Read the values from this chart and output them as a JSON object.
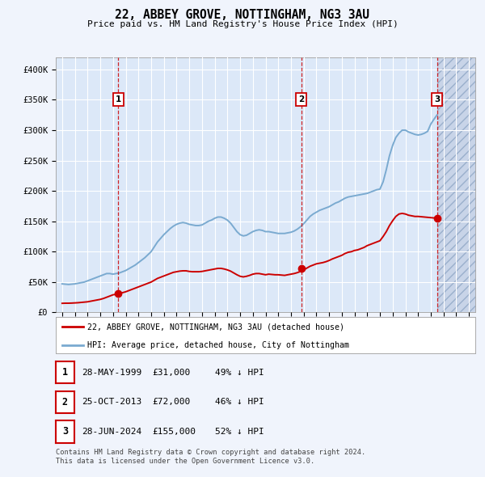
{
  "title": "22, ABBEY GROVE, NOTTINGHAM, NG3 3AU",
  "subtitle": "Price paid vs. HM Land Registry's House Price Index (HPI)",
  "background_color": "#f0f4fc",
  "plot_bg_color": "#dce8f8",
  "grid_color": "#ffffff",
  "red_line_color": "#cc0000",
  "blue_line_color": "#7aaad0",
  "sale_marker_color": "#cc0000",
  "sale_line_color": "#cc0000",
  "annotation_border_color": "#cc0000",
  "ylim": [
    0,
    420000
  ],
  "yticks": [
    0,
    50000,
    100000,
    150000,
    200000,
    250000,
    300000,
    350000,
    400000
  ],
  "ytick_labels": [
    "£0",
    "£50K",
    "£100K",
    "£150K",
    "£200K",
    "£250K",
    "£300K",
    "£350K",
    "£400K"
  ],
  "xlim_start": 1994.5,
  "xlim_end": 2027.5,
  "future_shade_start": 2024.5,
  "xticks": [
    1995,
    1996,
    1997,
    1998,
    1999,
    2000,
    2001,
    2002,
    2003,
    2004,
    2005,
    2006,
    2007,
    2008,
    2009,
    2010,
    2011,
    2012,
    2013,
    2014,
    2015,
    2016,
    2017,
    2018,
    2019,
    2020,
    2021,
    2022,
    2023,
    2024,
    2025,
    2026,
    2027
  ],
  "sale_points": [
    {
      "year": 1999.4,
      "price": 31000,
      "label": "1"
    },
    {
      "year": 2013.82,
      "price": 72000,
      "label": "2"
    },
    {
      "year": 2024.49,
      "price": 155000,
      "label": "3"
    }
  ],
  "legend_entries": [
    {
      "label": "22, ABBEY GROVE, NOTTINGHAM, NG3 3AU (detached house)",
      "color": "#cc0000"
    },
    {
      "label": "HPI: Average price, detached house, City of Nottingham",
      "color": "#7aaad0"
    }
  ],
  "table_rows": [
    {
      "num": "1",
      "date": "28-MAY-1999",
      "price": "£31,000",
      "hpi": "49% ↓ HPI"
    },
    {
      "num": "2",
      "date": "25-OCT-2013",
      "price": "£72,000",
      "hpi": "46% ↓ HPI"
    },
    {
      "num": "3",
      "date": "28-JUN-2024",
      "price": "£155,000",
      "hpi": "52% ↓ HPI"
    }
  ],
  "footer": "Contains HM Land Registry data © Crown copyright and database right 2024.\nThis data is licensed under the Open Government Licence v3.0.",
  "hpi_data": {
    "years": [
      1995.0,
      1995.25,
      1995.5,
      1995.75,
      1996.0,
      1996.25,
      1996.5,
      1996.75,
      1997.0,
      1997.25,
      1997.5,
      1997.75,
      1998.0,
      1998.25,
      1998.5,
      1998.75,
      1999.0,
      1999.25,
      1999.5,
      1999.75,
      2000.0,
      2000.25,
      2000.5,
      2000.75,
      2001.0,
      2001.25,
      2001.5,
      2001.75,
      2002.0,
      2002.25,
      2002.5,
      2002.75,
      2003.0,
      2003.25,
      2003.5,
      2003.75,
      2004.0,
      2004.25,
      2004.5,
      2004.75,
      2005.0,
      2005.25,
      2005.5,
      2005.75,
      2006.0,
      2006.25,
      2006.5,
      2006.75,
      2007.0,
      2007.25,
      2007.5,
      2007.75,
      2008.0,
      2008.25,
      2008.5,
      2008.75,
      2009.0,
      2009.25,
      2009.5,
      2009.75,
      2010.0,
      2010.25,
      2010.5,
      2010.75,
      2011.0,
      2011.25,
      2011.5,
      2011.75,
      2012.0,
      2012.25,
      2012.5,
      2012.75,
      2013.0,
      2013.25,
      2013.5,
      2013.75,
      2014.0,
      2014.25,
      2014.5,
      2014.75,
      2015.0,
      2015.25,
      2015.5,
      2015.75,
      2016.0,
      2016.25,
      2016.5,
      2016.75,
      2017.0,
      2017.25,
      2017.5,
      2017.75,
      2018.0,
      2018.25,
      2018.5,
      2018.75,
      2019.0,
      2019.25,
      2019.5,
      2019.75,
      2020.0,
      2020.25,
      2020.5,
      2020.75,
      2021.0,
      2021.25,
      2021.5,
      2021.75,
      2022.0,
      2022.25,
      2022.5,
      2022.75,
      2023.0,
      2023.25,
      2023.5,
      2023.75,
      2024.0,
      2024.25,
      2024.49
    ],
    "values": [
      47000,
      46500,
      46000,
      46500,
      47000,
      48000,
      49000,
      50000,
      52000,
      54000,
      56000,
      58000,
      60000,
      62000,
      64000,
      64000,
      63000,
      64000,
      65000,
      67000,
      69000,
      72000,
      75000,
      78000,
      82000,
      86000,
      90000,
      95000,
      100000,
      108000,
      116000,
      122000,
      128000,
      133000,
      138000,
      142000,
      145000,
      147000,
      148000,
      147000,
      145000,
      144000,
      143000,
      143000,
      144000,
      147000,
      150000,
      152000,
      155000,
      157000,
      157000,
      155000,
      152000,
      147000,
      140000,
      133000,
      128000,
      126000,
      127000,
      130000,
      133000,
      135000,
      136000,
      135000,
      133000,
      133000,
      132000,
      131000,
      130000,
      130000,
      130000,
      131000,
      132000,
      134000,
      137000,
      141000,
      146000,
      152000,
      158000,
      162000,
      165000,
      168000,
      170000,
      172000,
      174000,
      177000,
      180000,
      182000,
      185000,
      188000,
      190000,
      191000,
      192000,
      193000,
      194000,
      195000,
      196000,
      198000,
      200000,
      202000,
      203000,
      215000,
      235000,
      258000,
      275000,
      288000,
      295000,
      300000,
      300000,
      297000,
      295000,
      293000,
      292000,
      293000,
      295000,
      298000,
      310000,
      318000,
      325000
    ]
  },
  "red_data": {
    "years": [
      1995.0,
      1995.25,
      1995.5,
      1995.75,
      1996.0,
      1996.25,
      1996.5,
      1996.75,
      1997.0,
      1997.25,
      1997.5,
      1997.75,
      1998.0,
      1998.25,
      1998.5,
      1998.75,
      1999.0,
      1999.25,
      1999.5,
      1999.75,
      2000.0,
      2000.25,
      2000.5,
      2000.75,
      2001.0,
      2001.25,
      2001.5,
      2001.75,
      2002.0,
      2002.25,
      2002.5,
      2002.75,
      2003.0,
      2003.25,
      2003.5,
      2003.75,
      2004.0,
      2004.25,
      2004.5,
      2004.75,
      2005.0,
      2005.25,
      2005.5,
      2005.75,
      2006.0,
      2006.25,
      2006.5,
      2006.75,
      2007.0,
      2007.25,
      2007.5,
      2007.75,
      2008.0,
      2008.25,
      2008.5,
      2008.75,
      2009.0,
      2009.25,
      2009.5,
      2009.75,
      2010.0,
      2010.25,
      2010.5,
      2010.75,
      2011.0,
      2011.25,
      2011.5,
      2011.75,
      2012.0,
      2012.25,
      2012.5,
      2012.75,
      2013.0,
      2013.25,
      2013.5,
      2013.75,
      2014.0,
      2014.25,
      2014.5,
      2014.75,
      2015.0,
      2015.25,
      2015.5,
      2015.75,
      2016.0,
      2016.25,
      2016.5,
      2016.75,
      2017.0,
      2017.25,
      2017.5,
      2017.75,
      2018.0,
      2018.25,
      2018.5,
      2018.75,
      2019.0,
      2019.25,
      2019.5,
      2019.75,
      2020.0,
      2020.25,
      2020.5,
      2020.75,
      2021.0,
      2021.25,
      2021.5,
      2021.75,
      2022.0,
      2022.25,
      2022.5,
      2022.75,
      2023.0,
      2023.25,
      2023.5,
      2023.75,
      2024.0,
      2024.25,
      2024.49
    ],
    "values": [
      15000,
      15200,
      15200,
      15400,
      15700,
      16000,
      16500,
      17000,
      17500,
      18500,
      19500,
      20500,
      21500,
      23000,
      25000,
      27000,
      29000,
      30000,
      31000,
      32500,
      34000,
      36000,
      38000,
      40000,
      42000,
      44000,
      46000,
      48000,
      50000,
      53000,
      56000,
      58000,
      60000,
      62000,
      64000,
      66000,
      67000,
      68000,
      68500,
      68500,
      67500,
      67000,
      67000,
      67000,
      67500,
      68500,
      69500,
      70500,
      71500,
      72500,
      72500,
      71500,
      70000,
      68000,
      65000,
      62000,
      59500,
      58500,
      59500,
      61000,
      63000,
      64000,
      64000,
      63000,
      62000,
      63000,
      62500,
      62000,
      62000,
      61500,
      61000,
      62000,
      63000,
      64000,
      65500,
      67500,
      70000,
      73000,
      76000,
      78000,
      80000,
      81000,
      82000,
      83500,
      85500,
      88000,
      90000,
      92000,
      94000,
      97000,
      99000,
      100000,
      102000,
      103000,
      105000,
      107000,
      110000,
      112000,
      114000,
      116000,
      118000,
      125000,
      133000,
      143000,
      151000,
      158000,
      162000,
      163000,
      162000,
      160000,
      159000,
      158000,
      158000,
      157500,
      157000,
      156500,
      156000,
      155500,
      155000
    ]
  }
}
